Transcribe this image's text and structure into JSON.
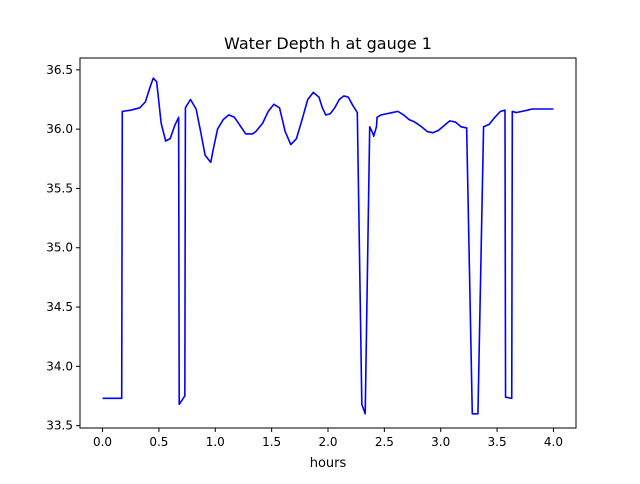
{
  "chart_data": {
    "type": "line",
    "title": "Water Depth h at gauge 1",
    "xlabel": "hours",
    "ylabel": "",
    "xlim": [
      -0.2,
      4.2
    ],
    "ylim": [
      33.48,
      36.6
    ],
    "xticks": [
      0.0,
      0.5,
      1.0,
      1.5,
      2.0,
      2.5,
      3.0,
      3.5,
      4.0
    ],
    "xtick_labels": [
      "0.0",
      "0.5",
      "1.0",
      "1.5",
      "2.0",
      "2.5",
      "3.0",
      "3.5",
      "4.0"
    ],
    "yticks": [
      33.5,
      34.0,
      34.5,
      35.0,
      35.5,
      36.0,
      36.5
    ],
    "ytick_labels": [
      "33.5",
      "34.0",
      "34.5",
      "35.0",
      "35.5",
      "36.0",
      "36.5"
    ],
    "grid": false,
    "series": [
      {
        "color": "#0000ff",
        "x": [
          0.0,
          0.17,
          0.175,
          0.25,
          0.33,
          0.38,
          0.42,
          0.45,
          0.48,
          0.52,
          0.56,
          0.6,
          0.64,
          0.675,
          0.68,
          0.73,
          0.735,
          0.78,
          0.83,
          0.87,
          0.91,
          0.96,
          0.98,
          1.02,
          1.07,
          1.12,
          1.17,
          1.22,
          1.27,
          1.33,
          1.36,
          1.42,
          1.47,
          1.52,
          1.57,
          1.62,
          1.67,
          1.72,
          1.77,
          1.82,
          1.87,
          1.92,
          1.95,
          1.98,
          2.02,
          2.06,
          2.1,
          2.14,
          2.18,
          2.22,
          2.26,
          2.3,
          2.33,
          2.37,
          2.4,
          2.405,
          2.43,
          2.435,
          2.47,
          2.52,
          2.57,
          2.62,
          2.67,
          2.72,
          2.77,
          2.83,
          2.88,
          2.93,
          2.98,
          3.03,
          3.08,
          3.13,
          3.18,
          3.23,
          3.28,
          3.33,
          3.38,
          3.43,
          3.48,
          3.53,
          3.57,
          3.575,
          3.63,
          3.635,
          3.67,
          3.72,
          3.77,
          3.81,
          3.815,
          3.86,
          3.865,
          3.92,
          3.97,
          4.0
        ],
        "y": [
          33.73,
          33.73,
          36.15,
          36.16,
          36.18,
          36.23,
          36.35,
          36.43,
          36.4,
          36.05,
          35.9,
          35.92,
          36.03,
          36.1,
          33.68,
          33.75,
          36.18,
          36.25,
          36.17,
          35.98,
          35.78,
          35.72,
          35.82,
          36.0,
          36.08,
          36.12,
          36.1,
          36.03,
          35.96,
          35.96,
          35.98,
          36.05,
          36.15,
          36.21,
          36.18,
          35.98,
          35.87,
          35.92,
          36.08,
          36.25,
          36.31,
          36.27,
          36.18,
          36.12,
          36.13,
          36.18,
          36.25,
          36.28,
          36.27,
          36.2,
          36.14,
          33.68,
          33.6,
          36.02,
          35.96,
          35.94,
          36.02,
          36.1,
          36.12,
          36.13,
          36.14,
          36.15,
          36.12,
          36.08,
          36.06,
          36.02,
          35.98,
          35.97,
          35.99,
          36.03,
          36.07,
          36.06,
          36.02,
          36.01,
          33.6,
          33.6,
          36.02,
          36.04,
          36.1,
          36.15,
          36.16,
          33.74,
          33.73,
          36.15,
          36.14,
          36.15,
          36.16,
          36.17,
          36.17,
          36.17,
          36.17,
          36.17,
          36.17,
          36.17
        ]
      }
    ]
  }
}
